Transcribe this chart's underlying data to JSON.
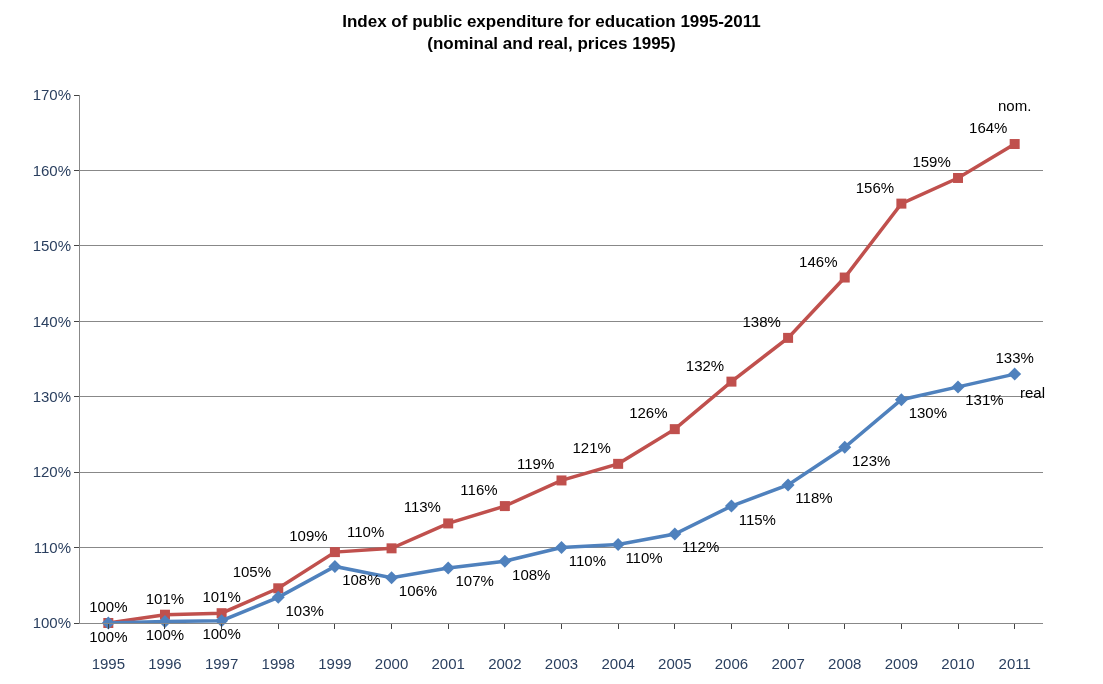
{
  "chart_data": {
    "type": "line",
    "title": "Index of public expenditure for education 1995-2011\n(nominal and real, prices 1995)",
    "categories": [
      "1995",
      "1996",
      "1997",
      "1998",
      "1999",
      "2000",
      "2001",
      "2002",
      "2003",
      "2004",
      "2005",
      "2006",
      "2007",
      "2008",
      "2009",
      "2010",
      "2011"
    ],
    "series": [
      {
        "name": "nom.",
        "color": "#c0504d",
        "marker": "square",
        "values": [
          100,
          101.1,
          101.3,
          104.6,
          109.4,
          109.9,
          113.2,
          115.5,
          118.9,
          121.1,
          125.7,
          132.0,
          137.8,
          145.8,
          155.6,
          159.0,
          163.5
        ],
        "value_labels": [
          "100%",
          "101%",
          "101%",
          "105%",
          "109%",
          "110%",
          "113%",
          "116%",
          "119%",
          "121%",
          "126%",
          "132%",
          "138%",
          "146%",
          "156%",
          "159%",
          "164%"
        ]
      },
      {
        "name": "real",
        "color": "#4f81bd",
        "marker": "diamond",
        "values": [
          100,
          100.2,
          100.3,
          103.4,
          107.5,
          106.0,
          107.3,
          108.2,
          110.0,
          110.4,
          111.8,
          115.5,
          118.3,
          123.3,
          129.6,
          131.3,
          133.0
        ],
        "value_labels": [
          "100%",
          "100%",
          "100%",
          "103%",
          "108%",
          "106%",
          "107%",
          "108%",
          "110%",
          "110%",
          "112%",
          "115%",
          "118%",
          "123%",
          "130%",
          "131%",
          "133%"
        ]
      }
    ],
    "ylim": [
      100,
      170
    ],
    "yticks": [
      {
        "value": 100,
        "label": "100%"
      },
      {
        "value": 110,
        "label": "110%"
      },
      {
        "value": 120,
        "label": "120%"
      },
      {
        "value": 130,
        "label": "130%"
      },
      {
        "value": 140,
        "label": "140%"
      },
      {
        "value": 150,
        "label": "150%"
      },
      {
        "value": 160,
        "label": "160%"
      },
      {
        "value": 170,
        "label": "170%"
      }
    ],
    "grid": "y",
    "legend": false,
    "line_style": "solid"
  }
}
